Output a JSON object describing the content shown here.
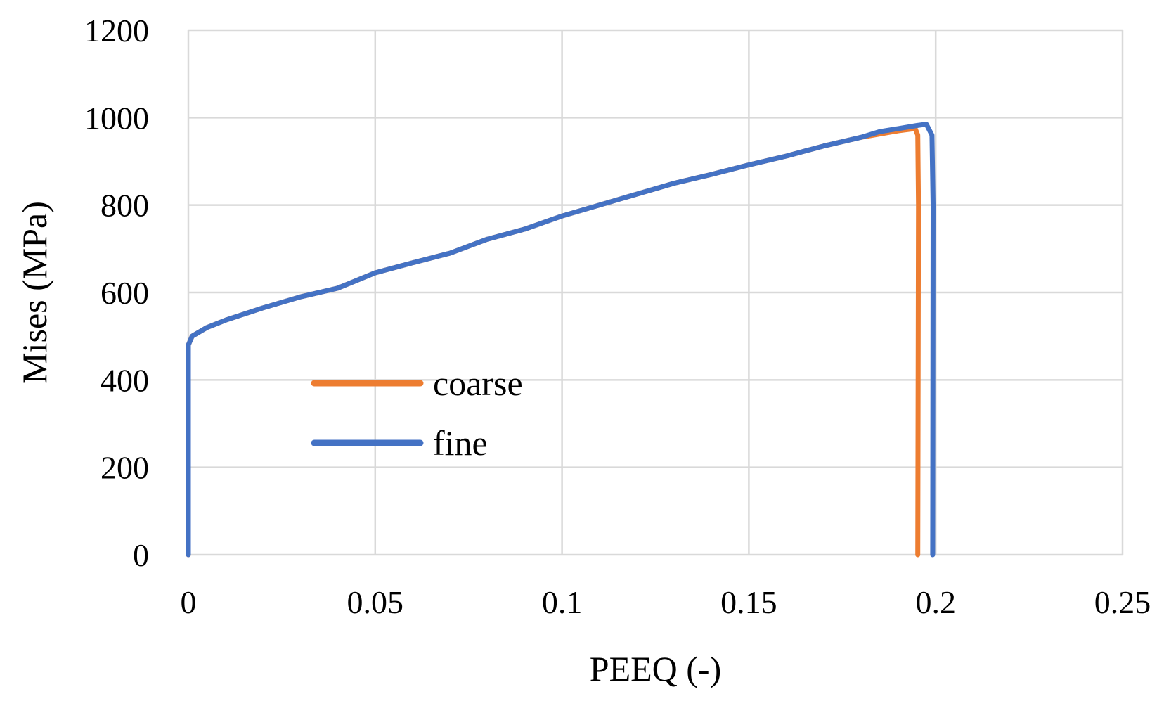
{
  "chart_data": {
    "type": "line",
    "title": "",
    "xlabel": "PEEQ (-)",
    "ylabel": "Mises (MPa)",
    "xlim": [
      0,
      0.25
    ],
    "ylim": [
      0,
      1200
    ],
    "x_ticks": [
      "0",
      "0.05",
      "0.1",
      "0.15",
      "0.2",
      "0.25"
    ],
    "y_ticks": [
      "0",
      "200",
      "400",
      "600",
      "800",
      "1000",
      "1200"
    ],
    "grid": true,
    "legend_position": "center-left",
    "series": [
      {
        "name": "coarse",
        "color": "#ed7d31",
        "points": [
          [
            0,
            0
          ],
          [
            0,
            480
          ],
          [
            0.001,
            500
          ],
          [
            0.005,
            520
          ],
          [
            0.01,
            537
          ],
          [
            0.02,
            565
          ],
          [
            0.03,
            590
          ],
          [
            0.04,
            610
          ],
          [
            0.05,
            645
          ],
          [
            0.06,
            668
          ],
          [
            0.07,
            690
          ],
          [
            0.08,
            722
          ],
          [
            0.09,
            745
          ],
          [
            0.1,
            775
          ],
          [
            0.11,
            800
          ],
          [
            0.12,
            825
          ],
          [
            0.13,
            850
          ],
          [
            0.14,
            870
          ],
          [
            0.15,
            892
          ],
          [
            0.16,
            912
          ],
          [
            0.17,
            935
          ],
          [
            0.18,
            955
          ],
          [
            0.19,
            970
          ],
          [
            0.1945,
            975
          ],
          [
            0.1952,
            960
          ],
          [
            0.1954,
            800
          ],
          [
            0.1952,
            0
          ]
        ]
      },
      {
        "name": "fine",
        "color": "#4472c4",
        "points": [
          [
            0,
            0
          ],
          [
            0,
            480
          ],
          [
            0.001,
            500
          ],
          [
            0.005,
            520
          ],
          [
            0.01,
            537
          ],
          [
            0.02,
            565
          ],
          [
            0.03,
            590
          ],
          [
            0.04,
            610
          ],
          [
            0.05,
            645
          ],
          [
            0.06,
            668
          ],
          [
            0.07,
            690
          ],
          [
            0.08,
            722
          ],
          [
            0.09,
            745
          ],
          [
            0.1,
            775
          ],
          [
            0.11,
            800
          ],
          [
            0.12,
            825
          ],
          [
            0.13,
            850
          ],
          [
            0.14,
            870
          ],
          [
            0.15,
            892
          ],
          [
            0.16,
            912
          ],
          [
            0.17,
            935
          ],
          [
            0.18,
            955
          ],
          [
            0.185,
            968
          ],
          [
            0.19,
            975
          ],
          [
            0.195,
            982
          ],
          [
            0.1975,
            985
          ],
          [
            0.199,
            960
          ],
          [
            0.1993,
            800
          ],
          [
            0.1992,
            0
          ]
        ]
      }
    ]
  }
}
